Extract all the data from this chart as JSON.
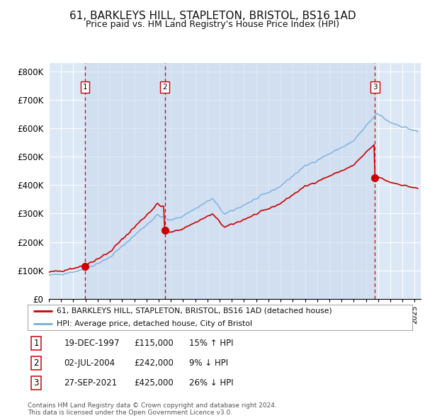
{
  "title": "61, BARKLEYS HILL, STAPLETON, BRISTOL, BS16 1AD",
  "subtitle": "Price paid vs. HM Land Registry's House Price Index (HPI)",
  "background_color": "#ffffff",
  "plot_bg_color": "#dce8f5",
  "grid_color": "#ffffff",
  "sale_dates": [
    "1997-12-19",
    "2004-07-02",
    "2021-09-27"
  ],
  "sale_prices": [
    115000,
    242000,
    425000
  ],
  "sale_labels": [
    "1",
    "2",
    "3"
  ],
  "sale_info": [
    {
      "label": "1",
      "date": "19-DEC-1997",
      "price": "£115,000",
      "hpi": "15% ↑ HPI"
    },
    {
      "label": "2",
      "date": "02-JUL-2004",
      "price": "£242,000",
      "hpi": "9% ↓ HPI"
    },
    {
      "label": "3",
      "date": "27-SEP-2021",
      "price": "£425,000",
      "hpi": "26% ↓ HPI"
    }
  ],
  "legend_line1": "61, BARKLEYS HILL, STAPLETON, BRISTOL, BS16 1AD (detached house)",
  "legend_line2": "HPI: Average price, detached house, City of Bristol",
  "footer1": "Contains HM Land Registry data © Crown copyright and database right 2024.",
  "footer2": "This data is licensed under the Open Government Licence v3.0.",
  "hpi_color": "#7aaedd",
  "price_color": "#cc0000",
  "dashed_line_color": "#cc0000",
  "shade_color": "#c8d8ee",
  "ylim": [
    0,
    830000
  ],
  "yticks": [
    0,
    100000,
    200000,
    300000,
    400000,
    500000,
    600000,
    700000,
    800000
  ],
  "ytick_labels": [
    "£0",
    "£100K",
    "£200K",
    "£300K",
    "£400K",
    "£500K",
    "£600K",
    "£700K",
    "£800K"
  ]
}
